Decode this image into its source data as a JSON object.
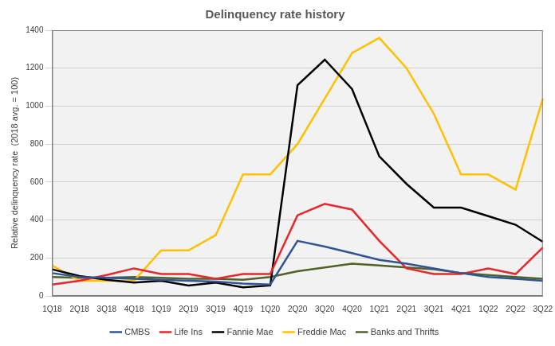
{
  "chart_data": {
    "type": "line",
    "title": "Delinquency rate history",
    "y_label": "Relative delinquency rate  (2018 avg. = 100)",
    "categories": [
      "1Q18",
      "2Q18",
      "3Q18",
      "4Q18",
      "1Q19",
      "2Q19",
      "3Q19",
      "4Q19",
      "1Q20",
      "2Q20",
      "3Q20",
      "4Q20",
      "1Q21",
      "2Q21",
      "3Q21",
      "4Q21",
      "1Q22",
      "2Q22",
      "3Q22"
    ],
    "series": [
      {
        "name": "CMBS",
        "color": "#2f5597",
        "values": [
          120,
          100,
          95,
          90,
          85,
          80,
          75,
          65,
          60,
          290,
          260,
          225,
          190,
          170,
          145,
          120,
          100,
          90,
          80
        ]
      },
      {
        "name": "Life Ins",
        "color": "#e8262b",
        "values": [
          60,
          80,
          110,
          145,
          115,
          115,
          90,
          115,
          115,
          425,
          485,
          455,
          290,
          145,
          115,
          115,
          145,
          115,
          255
        ]
      },
      {
        "name": "Fannie Mae",
        "color": "#000000",
        "values": [
          140,
          105,
          85,
          70,
          80,
          55,
          70,
          45,
          55,
          1110,
          1245,
          1090,
          735,
          590,
          465,
          465,
          420,
          375,
          285
        ]
      },
      {
        "name": "Freddie Mac",
        "color": "#ffc000",
        "values": [
          160,
          80,
          80,
          80,
          240,
          240,
          320,
          640,
          640,
          800,
          1040,
          1280,
          1360,
          1200,
          960,
          640,
          640,
          560,
          1040
        ]
      },
      {
        "name": "Banks and Thrifts",
        "color": "#4f6228",
        "values": [
          100,
          95,
          95,
          100,
          95,
          90,
          90,
          85,
          100,
          130,
          150,
          170,
          160,
          150,
          140,
          120,
          110,
          100,
          90
        ]
      }
    ],
    "ylim": [
      0,
      1400
    ],
    "yticks": [
      0,
      200,
      400,
      600,
      800,
      1000,
      1200,
      1400
    ],
    "grid": true,
    "legend": "bottom"
  }
}
